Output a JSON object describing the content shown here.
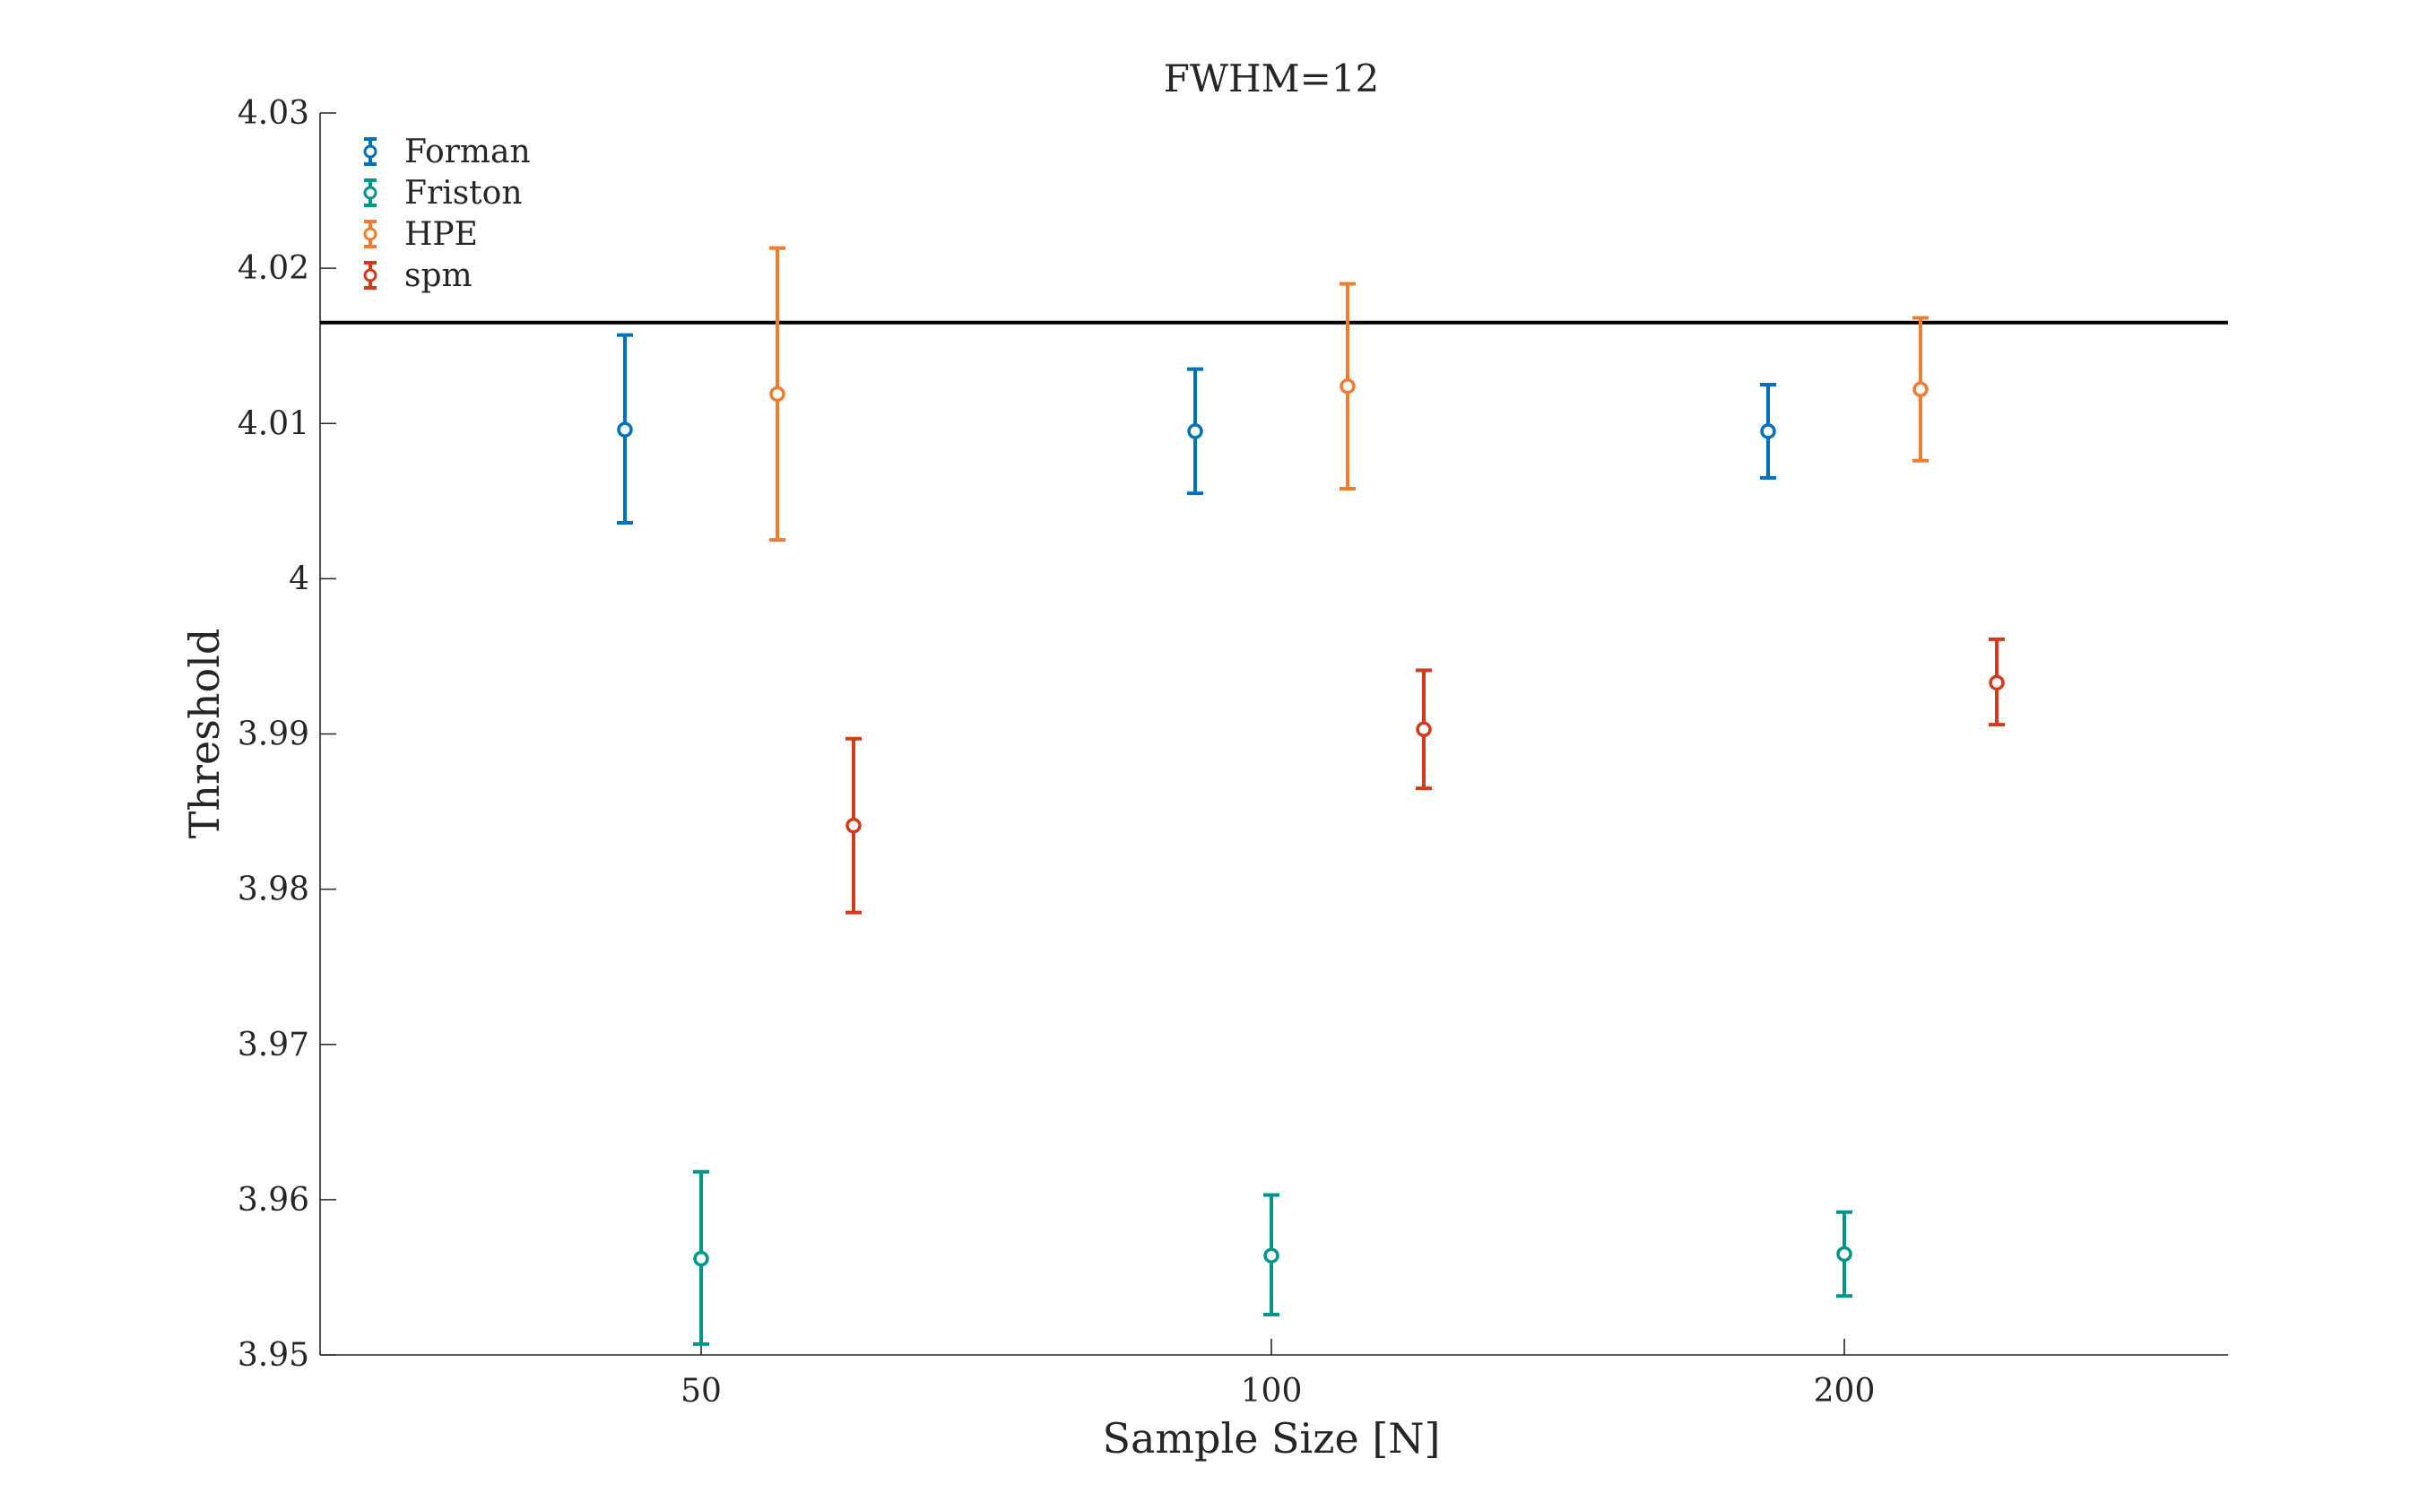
{
  "chart_data": {
    "type": "scatter",
    "title": "FWHM=12",
    "xlabel": "Sample Size [N]",
    "ylabel": "Threshold",
    "categories": [
      "50",
      "100",
      "200"
    ],
    "ylim": [
      3.95,
      4.03
    ],
    "yticks": [
      "3.95",
      "3.96",
      "3.97",
      "3.98",
      "3.99",
      "4",
      "4.01",
      "4.02",
      "4.03"
    ],
    "grid": false,
    "legend_position": "top-left",
    "reference_line": 4.0165,
    "series": [
      {
        "name": "Forman",
        "color": "#0072BD",
        "values": [
          4.0096,
          4.0095,
          4.0095
        ],
        "lower": [
          4.0036,
          4.0055,
          4.0065
        ],
        "upper": [
          4.0157,
          4.0135,
          4.0125
        ]
      },
      {
        "name": "Friston",
        "color": "#00968A",
        "values": [
          3.9562,
          3.9564,
          3.9565
        ],
        "lower": [
          3.9507,
          3.9526,
          3.9538
        ],
        "upper": [
          3.9618,
          3.9603,
          3.9592
        ]
      },
      {
        "name": "HPE",
        "color": "#ED7D31",
        "values": [
          4.0119,
          4.0124,
          4.0122
        ],
        "lower": [
          4.0025,
          4.0058,
          4.0076
        ],
        "upper": [
          4.0213,
          4.019,
          4.0168
        ]
      },
      {
        "name": "spm",
        "color": "#D13A1B",
        "values": [
          3.9841,
          3.9903,
          3.9933
        ],
        "lower": [
          3.9785,
          3.9865,
          3.9906
        ],
        "upper": [
          3.9897,
          3.9941,
          3.9961
        ]
      }
    ]
  }
}
